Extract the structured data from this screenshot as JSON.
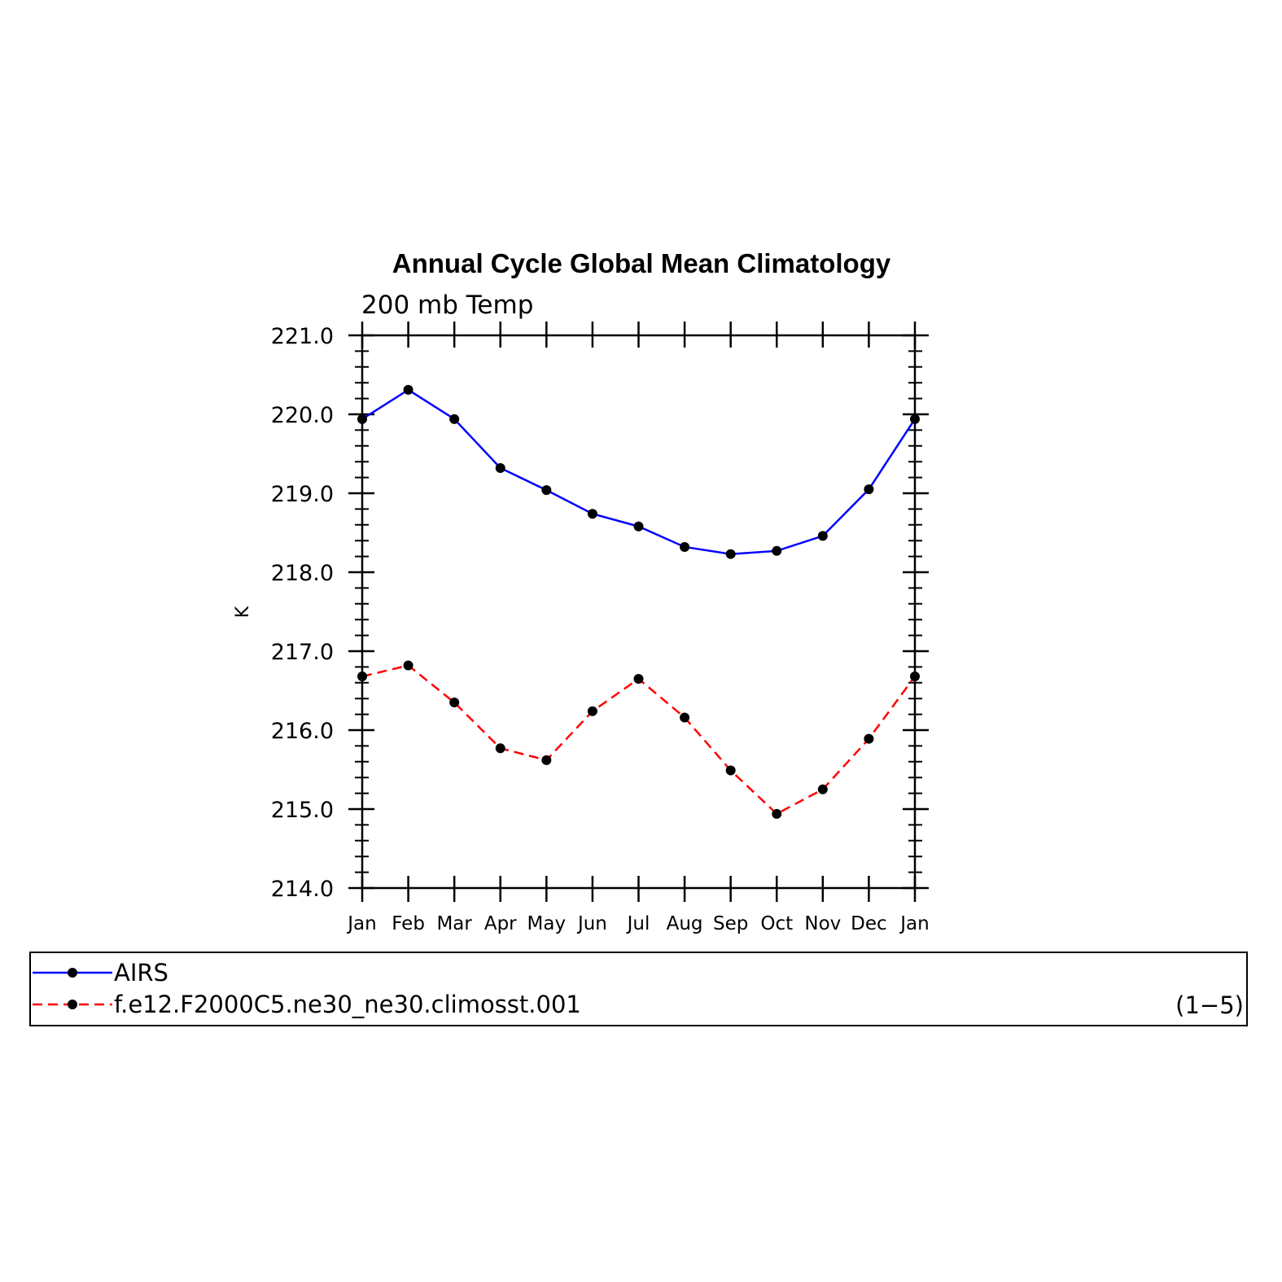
{
  "chart_data": {
    "type": "line",
    "title": "Annual Cycle Global Mean Climatology",
    "subtitle": "200 mb Temp",
    "ylabel": "K",
    "xlabel": "",
    "categories": [
      "Jan",
      "Feb",
      "Mar",
      "Apr",
      "May",
      "Jun",
      "Jul",
      "Aug",
      "Sep",
      "Oct",
      "Nov",
      "Dec",
      "Jan"
    ],
    "ylim": [
      214.0,
      221.0
    ],
    "yticks": [
      "214.0",
      "215.0",
      "216.0",
      "217.0",
      "218.0",
      "219.0",
      "220.0",
      "221.0"
    ],
    "grid": false,
    "series": [
      {
        "name": "AIRS",
        "color": "#0000ff",
        "dash": "solid",
        "values": [
          219.94,
          220.31,
          219.94,
          219.32,
          219.04,
          218.74,
          218.58,
          218.32,
          218.23,
          218.27,
          218.46,
          219.05,
          219.94
        ]
      },
      {
        "name": "f.e12.F2000C5.ne30_ne30.climosst.001",
        "color": "#ff0000",
        "dash": "dashed",
        "values": [
          216.68,
          216.82,
          216.35,
          215.77,
          215.62,
          216.24,
          216.65,
          216.16,
          215.49,
          214.94,
          215.25,
          215.89,
          216.68
        ]
      }
    ],
    "legend": {
      "placement": "bottom",
      "note": "(1−5)"
    }
  }
}
